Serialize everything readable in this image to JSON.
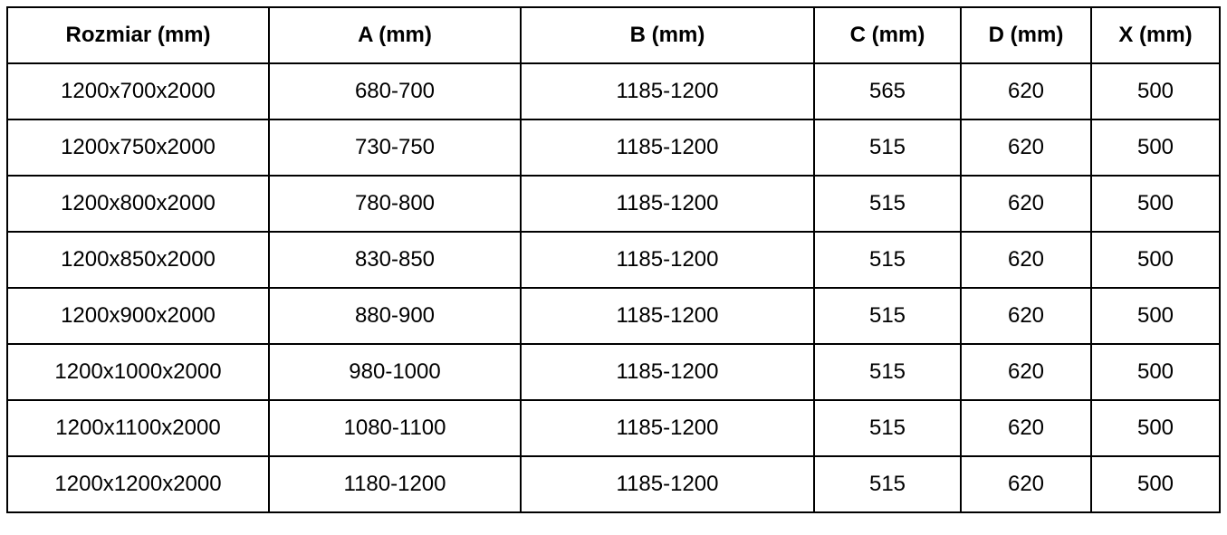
{
  "table": {
    "headers": [
      "Rozmiar (mm)",
      "A (mm)",
      "B (mm)",
      "C (mm)",
      "D (mm)",
      "X (mm)"
    ],
    "rows": [
      [
        "1200x700x2000",
        "680-700",
        "1185-1200",
        "565",
        "620",
        "500"
      ],
      [
        "1200x750x2000",
        "730-750",
        "1185-1200",
        "515",
        "620",
        "500"
      ],
      [
        "1200x800x2000",
        "780-800",
        "1185-1200",
        "515",
        "620",
        "500"
      ],
      [
        "1200x850x2000",
        "830-850",
        "1185-1200",
        "515",
        "620",
        "500"
      ],
      [
        "1200x900x2000",
        "880-900",
        "1185-1200",
        "515",
        "620",
        "500"
      ],
      [
        "1200x1000x2000",
        "980-1000",
        "1185-1200",
        "515",
        "620",
        "500"
      ],
      [
        "1200x1100x2000",
        "1080-1100",
        "1185-1200",
        "515",
        "620",
        "500"
      ],
      [
        "1200x1200x2000",
        "1180-1200",
        "1185-1200",
        "515",
        "620",
        "500"
      ]
    ]
  }
}
